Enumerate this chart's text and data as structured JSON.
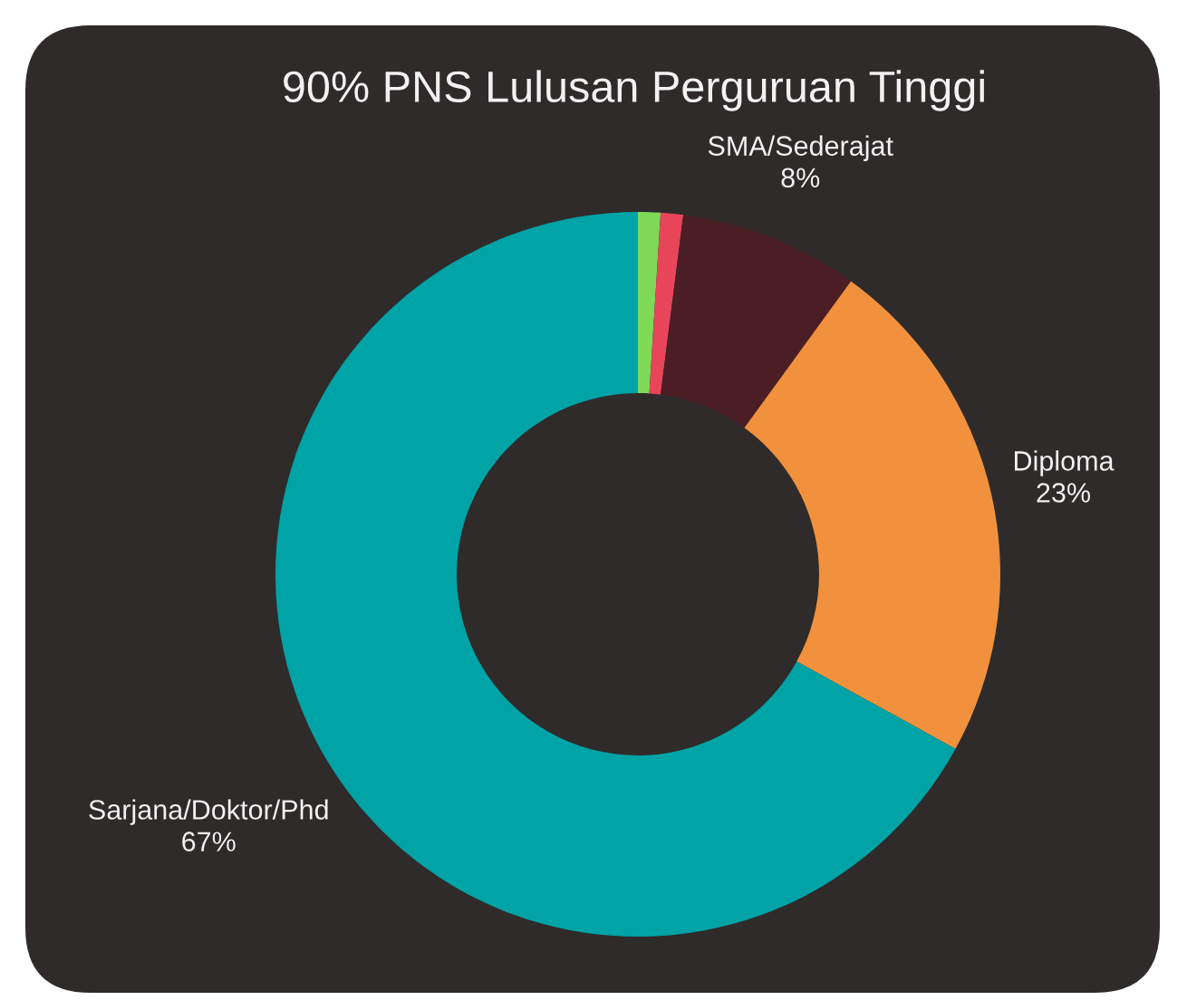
{
  "chart_data": {
    "type": "donut",
    "title": "90% PNS Lulusan Perguruan Tinggi",
    "categories": [
      null,
      null,
      "SMA/Sederajat",
      "Diploma",
      "Sarjana/Doktor/Phd"
    ],
    "values": [
      1,
      1,
      8,
      23,
      67
    ],
    "colors": [
      "#7ed957",
      "#e8455a",
      "#4a1e24",
      "#f2913d",
      "#00a3a6"
    ],
    "value_labels": [
      null,
      null,
      "8%",
      "23%",
      "67%"
    ]
  }
}
